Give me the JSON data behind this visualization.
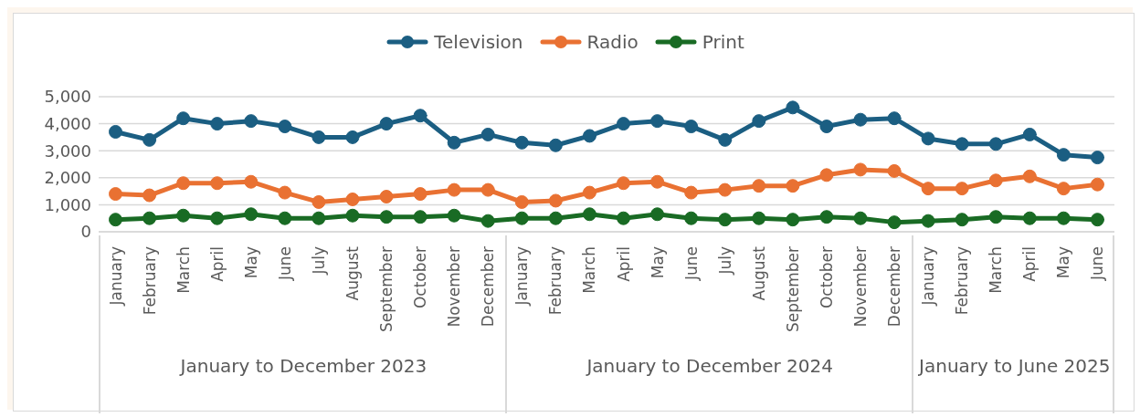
{
  "chart_data": {
    "type": "line",
    "categories": [
      "January",
      "February",
      "March",
      "April",
      "May",
      "June",
      "July",
      "August",
      "September",
      "October",
      "November",
      "December",
      "January",
      "February",
      "March",
      "April",
      "May",
      "June",
      "July",
      "August",
      "September",
      "October",
      "November",
      "December",
      "January",
      "February",
      "March",
      "April",
      "May",
      "June"
    ],
    "series": [
      {
        "name": "Television",
        "color": "#1b5e82",
        "values": [
          3700,
          3400,
          4200,
          4000,
          4100,
          3900,
          3500,
          3500,
          4000,
          4300,
          3300,
          3600,
          3300,
          3200,
          3550,
          4000,
          4100,
          3900,
          3400,
          4100,
          4600,
          3900,
          4150,
          4200,
          3450,
          3250,
          3250,
          3600,
          2850,
          2750
        ]
      },
      {
        "name": "Radio",
        "color": "#e97132",
        "values": [
          1400,
          1350,
          1800,
          1800,
          1850,
          1450,
          1100,
          1200,
          1300,
          1400,
          1550,
          1550,
          1100,
          1150,
          1450,
          1800,
          1850,
          1450,
          1550,
          1700,
          1700,
          2100,
          2300,
          2250,
          1600,
          1600,
          1900,
          2050,
          1600,
          1750
        ]
      },
      {
        "name": "Print",
        "color": "#196b24",
        "values": [
          450,
          500,
          600,
          500,
          650,
          500,
          500,
          600,
          550,
          550,
          600,
          400,
          500,
          500,
          650,
          500,
          650,
          500,
          450,
          500,
          450,
          550,
          500,
          350,
          400,
          450,
          550,
          500,
          500,
          450
        ]
      }
    ],
    "ylim": [
      0,
      5000
    ],
    "yticks": [
      {
        "value": 0,
        "label": "0"
      },
      {
        "value": 1000,
        "label": "1,000"
      },
      {
        "value": 2000,
        "label": "2,000"
      },
      {
        "value": 3000,
        "label": "3,000"
      },
      {
        "value": 4000,
        "label": "4,000"
      },
      {
        "value": 5000,
        "label": "5,000"
      }
    ],
    "grid": "y",
    "legend": "top",
    "marker": "circle",
    "line_style": "solid",
    "annotations": [
      "January to December 2023",
      "January to December 2024",
      "January to June 2025"
    ]
  }
}
